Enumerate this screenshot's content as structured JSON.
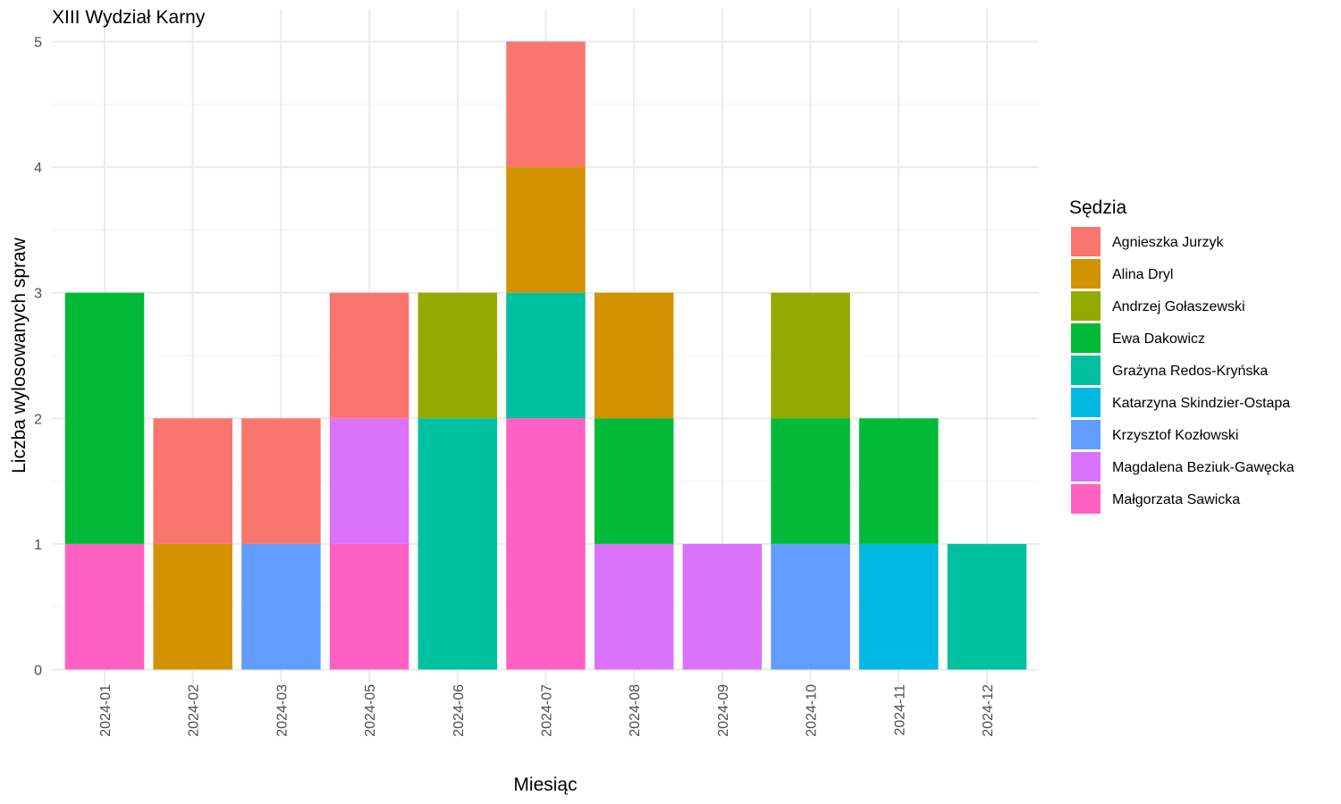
{
  "chart_data": {
    "type": "bar",
    "stacked": true,
    "title": "XIII Wydział Karny",
    "xlabel": "Miesiąc",
    "ylabel": "Liczba wylosowanych spraw",
    "ylim": [
      0,
      5
    ],
    "yticks": [
      "0",
      "1",
      "2",
      "3",
      "4",
      "5"
    ],
    "grid": true,
    "legend_title": "Sędzia",
    "legend_position": "right",
    "categories": [
      "2024-01",
      "2024-02",
      "2024-03",
      "2024-05",
      "2024-06",
      "2024-07",
      "2024-08",
      "2024-09",
      "2024-10",
      "2024-11",
      "2024-12"
    ],
    "series": [
      {
        "name": "Agnieszka Jurzyk",
        "color": "#F8766D",
        "values": [
          0,
          1,
          1,
          1,
          0,
          1,
          0,
          0,
          0,
          0,
          0
        ]
      },
      {
        "name": "Alina Dryl",
        "color": "#D39200",
        "values": [
          0,
          1,
          0,
          0,
          0,
          1,
          1,
          0,
          0,
          0,
          0
        ]
      },
      {
        "name": "Andrzej Gołaszewski",
        "color": "#93AA00",
        "values": [
          0,
          0,
          0,
          0,
          1,
          0,
          0,
          0,
          1,
          0,
          0
        ]
      },
      {
        "name": "Ewa Dakowicz",
        "color": "#00BA38",
        "values": [
          2,
          0,
          0,
          0,
          0,
          0,
          1,
          0,
          1,
          1,
          0
        ]
      },
      {
        "name": "Grażyna Redos-Kryńska",
        "color": "#00C19F",
        "values": [
          0,
          0,
          0,
          0,
          2,
          1,
          0,
          0,
          0,
          0,
          1
        ]
      },
      {
        "name": "Katarzyna Skindzier-Ostapa",
        "color": "#00B9E3",
        "values": [
          0,
          0,
          0,
          0,
          0,
          0,
          0,
          0,
          0,
          1,
          0
        ]
      },
      {
        "name": "Krzysztof Kozłowski",
        "color": "#619CFF",
        "values": [
          0,
          0,
          1,
          0,
          0,
          0,
          0,
          0,
          1,
          0,
          0
        ]
      },
      {
        "name": "Magdalena Beziuk-Gawęcka",
        "color": "#DB72FB",
        "values": [
          0,
          0,
          0,
          1,
          0,
          0,
          1,
          1,
          0,
          0,
          0
        ]
      },
      {
        "name": "Małgorzata Sawicka",
        "color": "#FF61C3",
        "values": [
          1,
          0,
          0,
          1,
          0,
          2,
          0,
          0,
          0,
          0,
          0
        ]
      }
    ]
  }
}
